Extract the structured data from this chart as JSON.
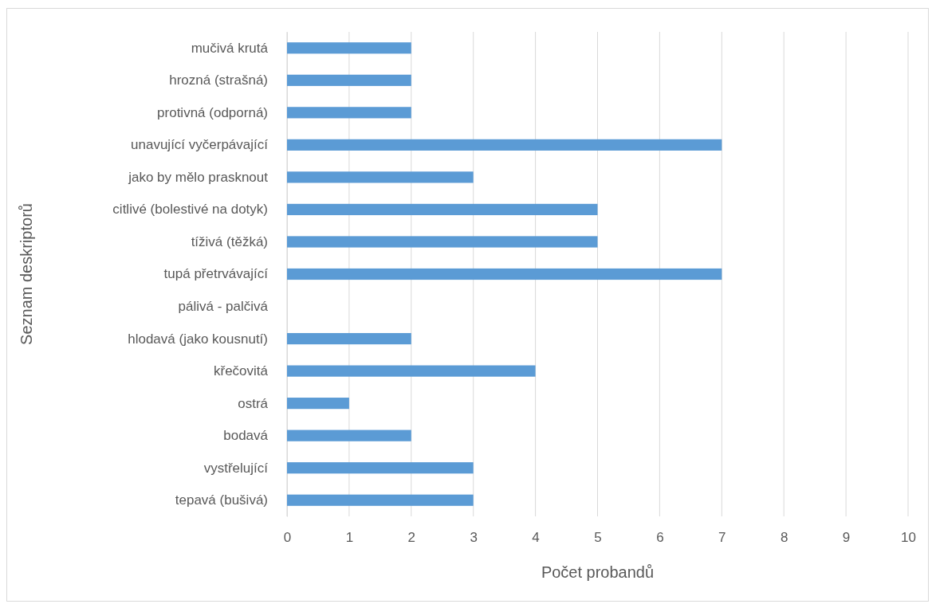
{
  "chart_data": {
    "type": "bar",
    "orientation": "horizontal",
    "xlabel": "Počet probandů",
    "ylabel": "Seznam deskriptorů",
    "categories": [
      "mučivá krutá",
      "hrozná (strašná)",
      "protivná (odporná)",
      "unavující vyčerpávající",
      "jako by mělo prasknout",
      "citlivé (bolestivé na dotyk)",
      "tíživá (těžká)",
      "tupá přetrvávající",
      "pálivá - palčivá",
      "hlodavá (jako kousnutí)",
      "křečovitá",
      "ostrá",
      "bodavá",
      "vystřelující",
      "tepavá (bušivá)"
    ],
    "values": [
      2,
      2,
      2,
      7,
      3,
      5,
      5,
      7,
      0,
      2,
      4,
      1,
      2,
      3,
      3
    ],
    "color": "#5b9bd5",
    "xlim": [
      0,
      10
    ],
    "xticks": [
      0,
      1,
      2,
      3,
      4,
      5,
      6,
      7,
      8,
      9,
      10
    ],
    "grid": "x"
  }
}
